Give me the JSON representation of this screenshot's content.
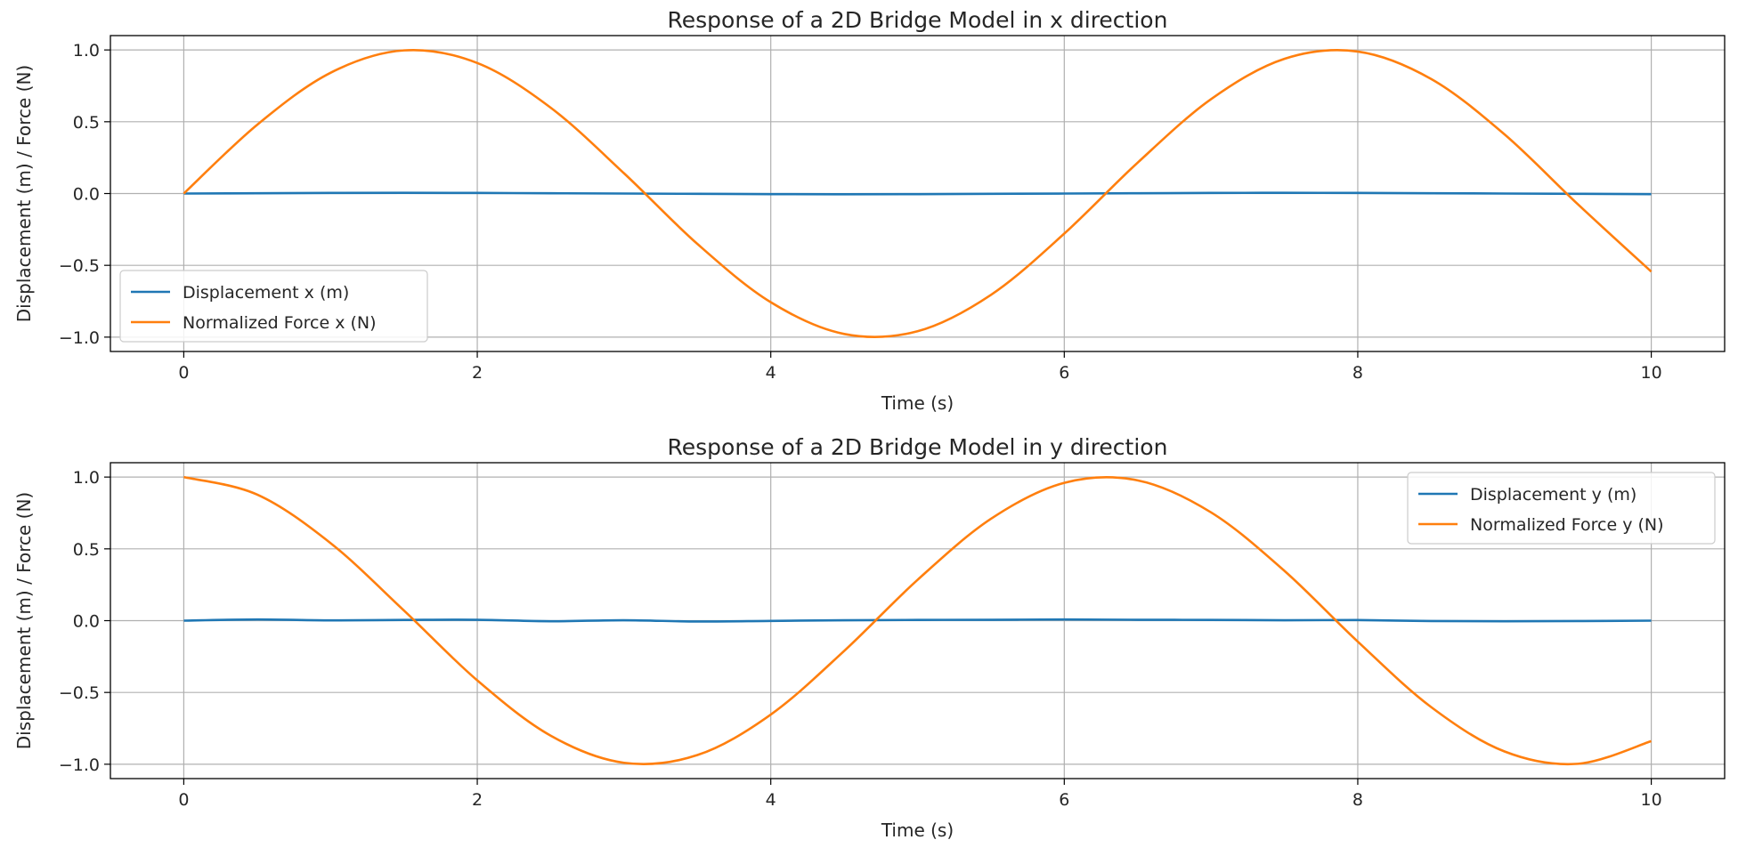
{
  "figure": {
    "grid": true,
    "colors": {
      "displacement": "#1f77b4",
      "force": "#ff7f0e",
      "grid": "#b0b0b0",
      "axes": "#000000"
    }
  },
  "chart_data": [
    {
      "type": "line",
      "title": "Response of a 2D Bridge Model in x direction",
      "xlabel": "Time (s)",
      "ylabel": "Displacement (m) / Force (N)",
      "xlim": [
        -0.5,
        10.5
      ],
      "ylim": [
        -1.1,
        1.1
      ],
      "xticks": [
        0,
        2,
        4,
        6,
        8,
        10
      ],
      "xtick_labels": [
        "0",
        "2",
        "4",
        "6",
        "8",
        "10"
      ],
      "yticks": [
        -1.0,
        -0.5,
        0.0,
        0.5,
        1.0
      ],
      "ytick_labels": [
        "−1.0",
        "−0.5",
        "0.0",
        "0.5",
        "1.0"
      ],
      "grid": true,
      "legend_position": "lower-left",
      "x": [
        0,
        0.5,
        1,
        1.5,
        2,
        2.5,
        3,
        3.5,
        4,
        4.5,
        5,
        5.5,
        6,
        6.5,
        7,
        7.5,
        8,
        8.5,
        9,
        9.5,
        10
      ],
      "series": [
        {
          "name": "Displacement x (m)",
          "color": "#1f77b4",
          "values": [
            0.0,
            0.002,
            0.004,
            0.005,
            0.004,
            0.002,
            0.0,
            -0.002,
            -0.004,
            -0.005,
            -0.004,
            -0.002,
            0.0,
            0.002,
            0.004,
            0.005,
            0.004,
            0.002,
            0.0,
            -0.002,
            -0.004
          ]
        },
        {
          "name": "Normalized Force x (N)",
          "color": "#ff7f0e",
          "values": [
            0.0,
            0.479,
            0.841,
            0.997,
            0.909,
            0.598,
            0.141,
            -0.351,
            -0.757,
            -0.978,
            -0.959,
            -0.706,
            -0.279,
            0.215,
            0.657,
            0.938,
            0.989,
            0.798,
            0.412,
            -0.075,
            -0.544
          ]
        }
      ]
    },
    {
      "type": "line",
      "title": "Response of a 2D Bridge Model in y direction",
      "xlabel": "Time (s)",
      "ylabel": "Displacement (m) / Force (N)",
      "xlim": [
        -0.5,
        10.5
      ],
      "ylim": [
        -1.1,
        1.1
      ],
      "xticks": [
        0,
        2,
        4,
        6,
        8,
        10
      ],
      "xtick_labels": [
        "0",
        "2",
        "4",
        "6",
        "8",
        "10"
      ],
      "yticks": [
        -1.0,
        -0.5,
        0.0,
        0.5,
        1.0
      ],
      "ytick_labels": [
        "−1.0",
        "−0.5",
        "0.0",
        "0.5",
        "1.0"
      ],
      "grid": true,
      "legend_position": "upper-right",
      "x": [
        0,
        0.5,
        1,
        1.5,
        2,
        2.5,
        3,
        3.5,
        4,
        4.5,
        5,
        5.5,
        6,
        6.5,
        7,
        7.5,
        8,
        8.5,
        9,
        9.5,
        10
      ],
      "series": [
        {
          "name": "Displacement y (m)",
          "color": "#1f77b4",
          "values": [
            0.0,
            0.008,
            0.002,
            0.005,
            0.006,
            -0.004,
            0.003,
            -0.006,
            -0.002,
            0.003,
            0.005,
            0.006,
            0.008,
            0.006,
            0.005,
            0.003,
            0.004,
            -0.003,
            -0.004,
            -0.003,
            0.0
          ]
        },
        {
          "name": "Normalized Force y (N)",
          "color": "#ff7f0e",
          "values": [
            1.0,
            0.878,
            0.54,
            0.071,
            -0.416,
            -0.801,
            -0.99,
            -0.936,
            -0.654,
            -0.211,
            0.284,
            0.709,
            0.96,
            0.977,
            0.754,
            0.347,
            -0.146,
            -0.602,
            -0.911,
            -0.997,
            -0.839
          ]
        }
      ]
    }
  ]
}
